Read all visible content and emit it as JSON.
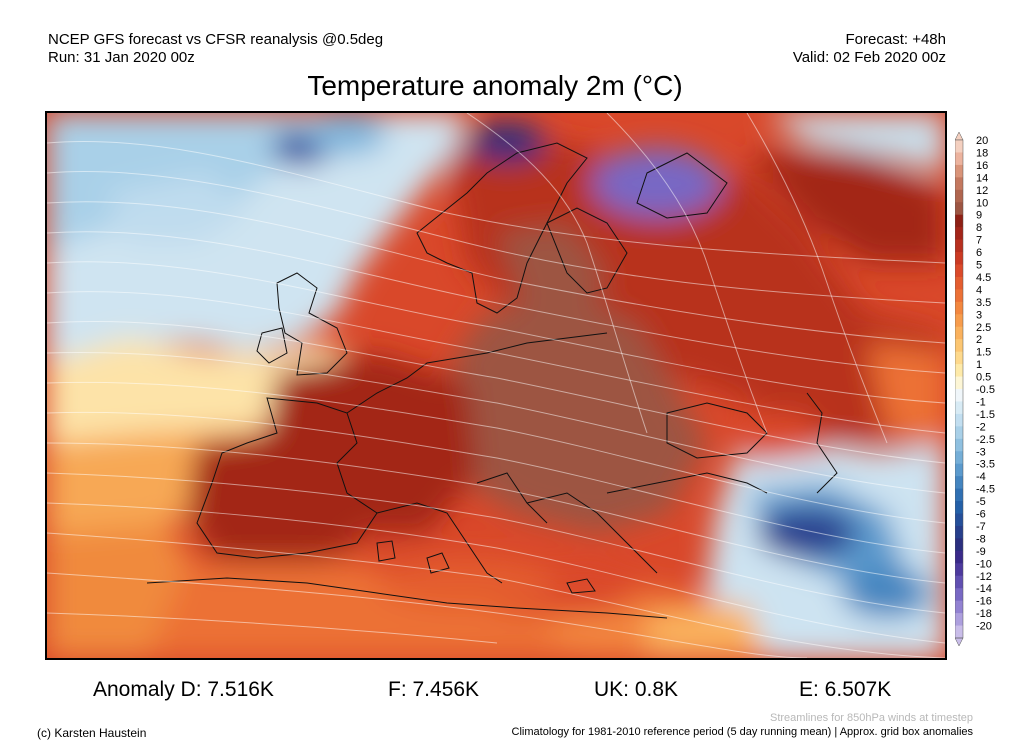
{
  "header": {
    "line1": "NCEP GFS forecast vs CFSR reanalysis @0.5deg",
    "line2": "Run: 31 Jan 2020 00z",
    "forecast": "Forecast: +48h",
    "valid": "Valid: 02 Feb 2020 00z"
  },
  "title": "Temperature anomaly 2m (°C)",
  "legend": {
    "labels": [
      "20",
      "18",
      "16",
      "14",
      "12",
      "10",
      "9",
      "8",
      "7",
      "6",
      "5",
      "4.5",
      "4",
      "3.5",
      "3",
      "2.5",
      "2",
      "1.5",
      "1",
      "0.5",
      "-0.5",
      "-1",
      "-1.5",
      "-2",
      "-2.5",
      "-3",
      "-3.5",
      "-4",
      "-4.5",
      "-5",
      "-6",
      "-7",
      "-8",
      "-9",
      "-10",
      "-12",
      "-14",
      "-16",
      "-18",
      "-20"
    ],
    "colors": [
      "#f4d0c0",
      "#ecb39e",
      "#d99479",
      "#c4785f",
      "#b0654e",
      "#9d5542",
      "#8e2015",
      "#a32519",
      "#b8301f",
      "#cb3a23",
      "#db4a2a",
      "#e45d2f",
      "#ec7136",
      "#f3873f",
      "#f79c4c",
      "#fab15d",
      "#fcc672",
      "#fed98c",
      "#feeaa9",
      "#fdf6d6",
      "#f0f6fa",
      "#d8ebf5",
      "#c2def0",
      "#a9d0e8",
      "#8fc0e0",
      "#75aed7",
      "#5b9acd",
      "#4485c0",
      "#3070b3",
      "#2460a8",
      "#254f9a",
      "#273f8c",
      "#2b2f7f",
      "#3a2a8a",
      "#4d3a9e",
      "#6150b2",
      "#7868c4",
      "#9282d2",
      "#ad9fde",
      "#c9bde9"
    ]
  },
  "stats": {
    "d": "Anomaly D: 7.516K",
    "f": "F: 7.456K",
    "uk": "UK: 0.8K",
    "e": "E: 6.507K"
  },
  "footer": {
    "copyright": "(c) Karsten Haustein",
    "streamlines": "Streamlines for 850hPa winds at timestep",
    "climatology": "Climatology for 1981-2010 reference period (5 day running mean) | Approx. grid box anomalies"
  }
}
